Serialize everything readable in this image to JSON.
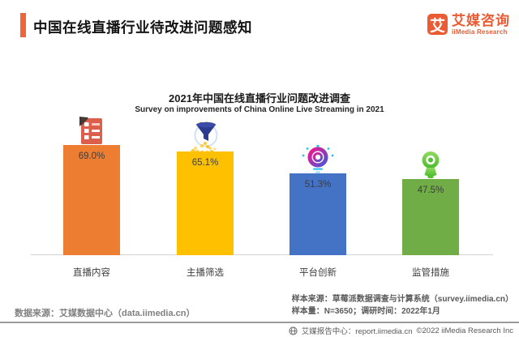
{
  "header": {
    "title": "中国在线直播行业待改进问题感知",
    "logo": {
      "mark": "艾",
      "name_cn": "艾媒咨询",
      "name_en": "iiMedia Research"
    }
  },
  "chart_data": {
    "type": "bar",
    "title": "2021年中国在线直播行业问题改进调查",
    "subtitle": "Survey on improvements of China Online Live Streaming in 2021",
    "categories": [
      "直播内容",
      "主播筛选",
      "平台创新",
      "监管措施"
    ],
    "values": [
      69.0,
      65.1,
      51.3,
      47.5
    ],
    "value_labels": [
      "69.0%",
      "65.1%",
      "51.3%",
      "47.5%"
    ],
    "unit": "%",
    "ylim": [
      0,
      100
    ],
    "grid": false,
    "legend": "none",
    "bar_colors": [
      "#ED7D31",
      "#FFC000",
      "#4472C4",
      "#70AD47"
    ],
    "icons": [
      "form-document-icon",
      "funnel-coins-icon",
      "lens-ring-icon",
      "webcam-icon"
    ]
  },
  "footer": {
    "data_source": "数据来源：艾媒数据中心（data.iimedia.cn）",
    "sample_source": "样本来源：草莓派数据调查与计算系统（survey.iimedia.cn）",
    "sample_info": "样本量：N=3650；调研时间：2022年1月",
    "report_center": "艾媒报告中心：report.iimedia.cn",
    "copyright": "©2022  iiMedia Research  Inc"
  },
  "colors": {
    "accent_orange": "#F0663C",
    "logo_orange": "#EA5B33",
    "baseline_gray": "#D5D5D5",
    "footer_text_gray": "#595959",
    "source_text_gray": "#808080"
  }
}
